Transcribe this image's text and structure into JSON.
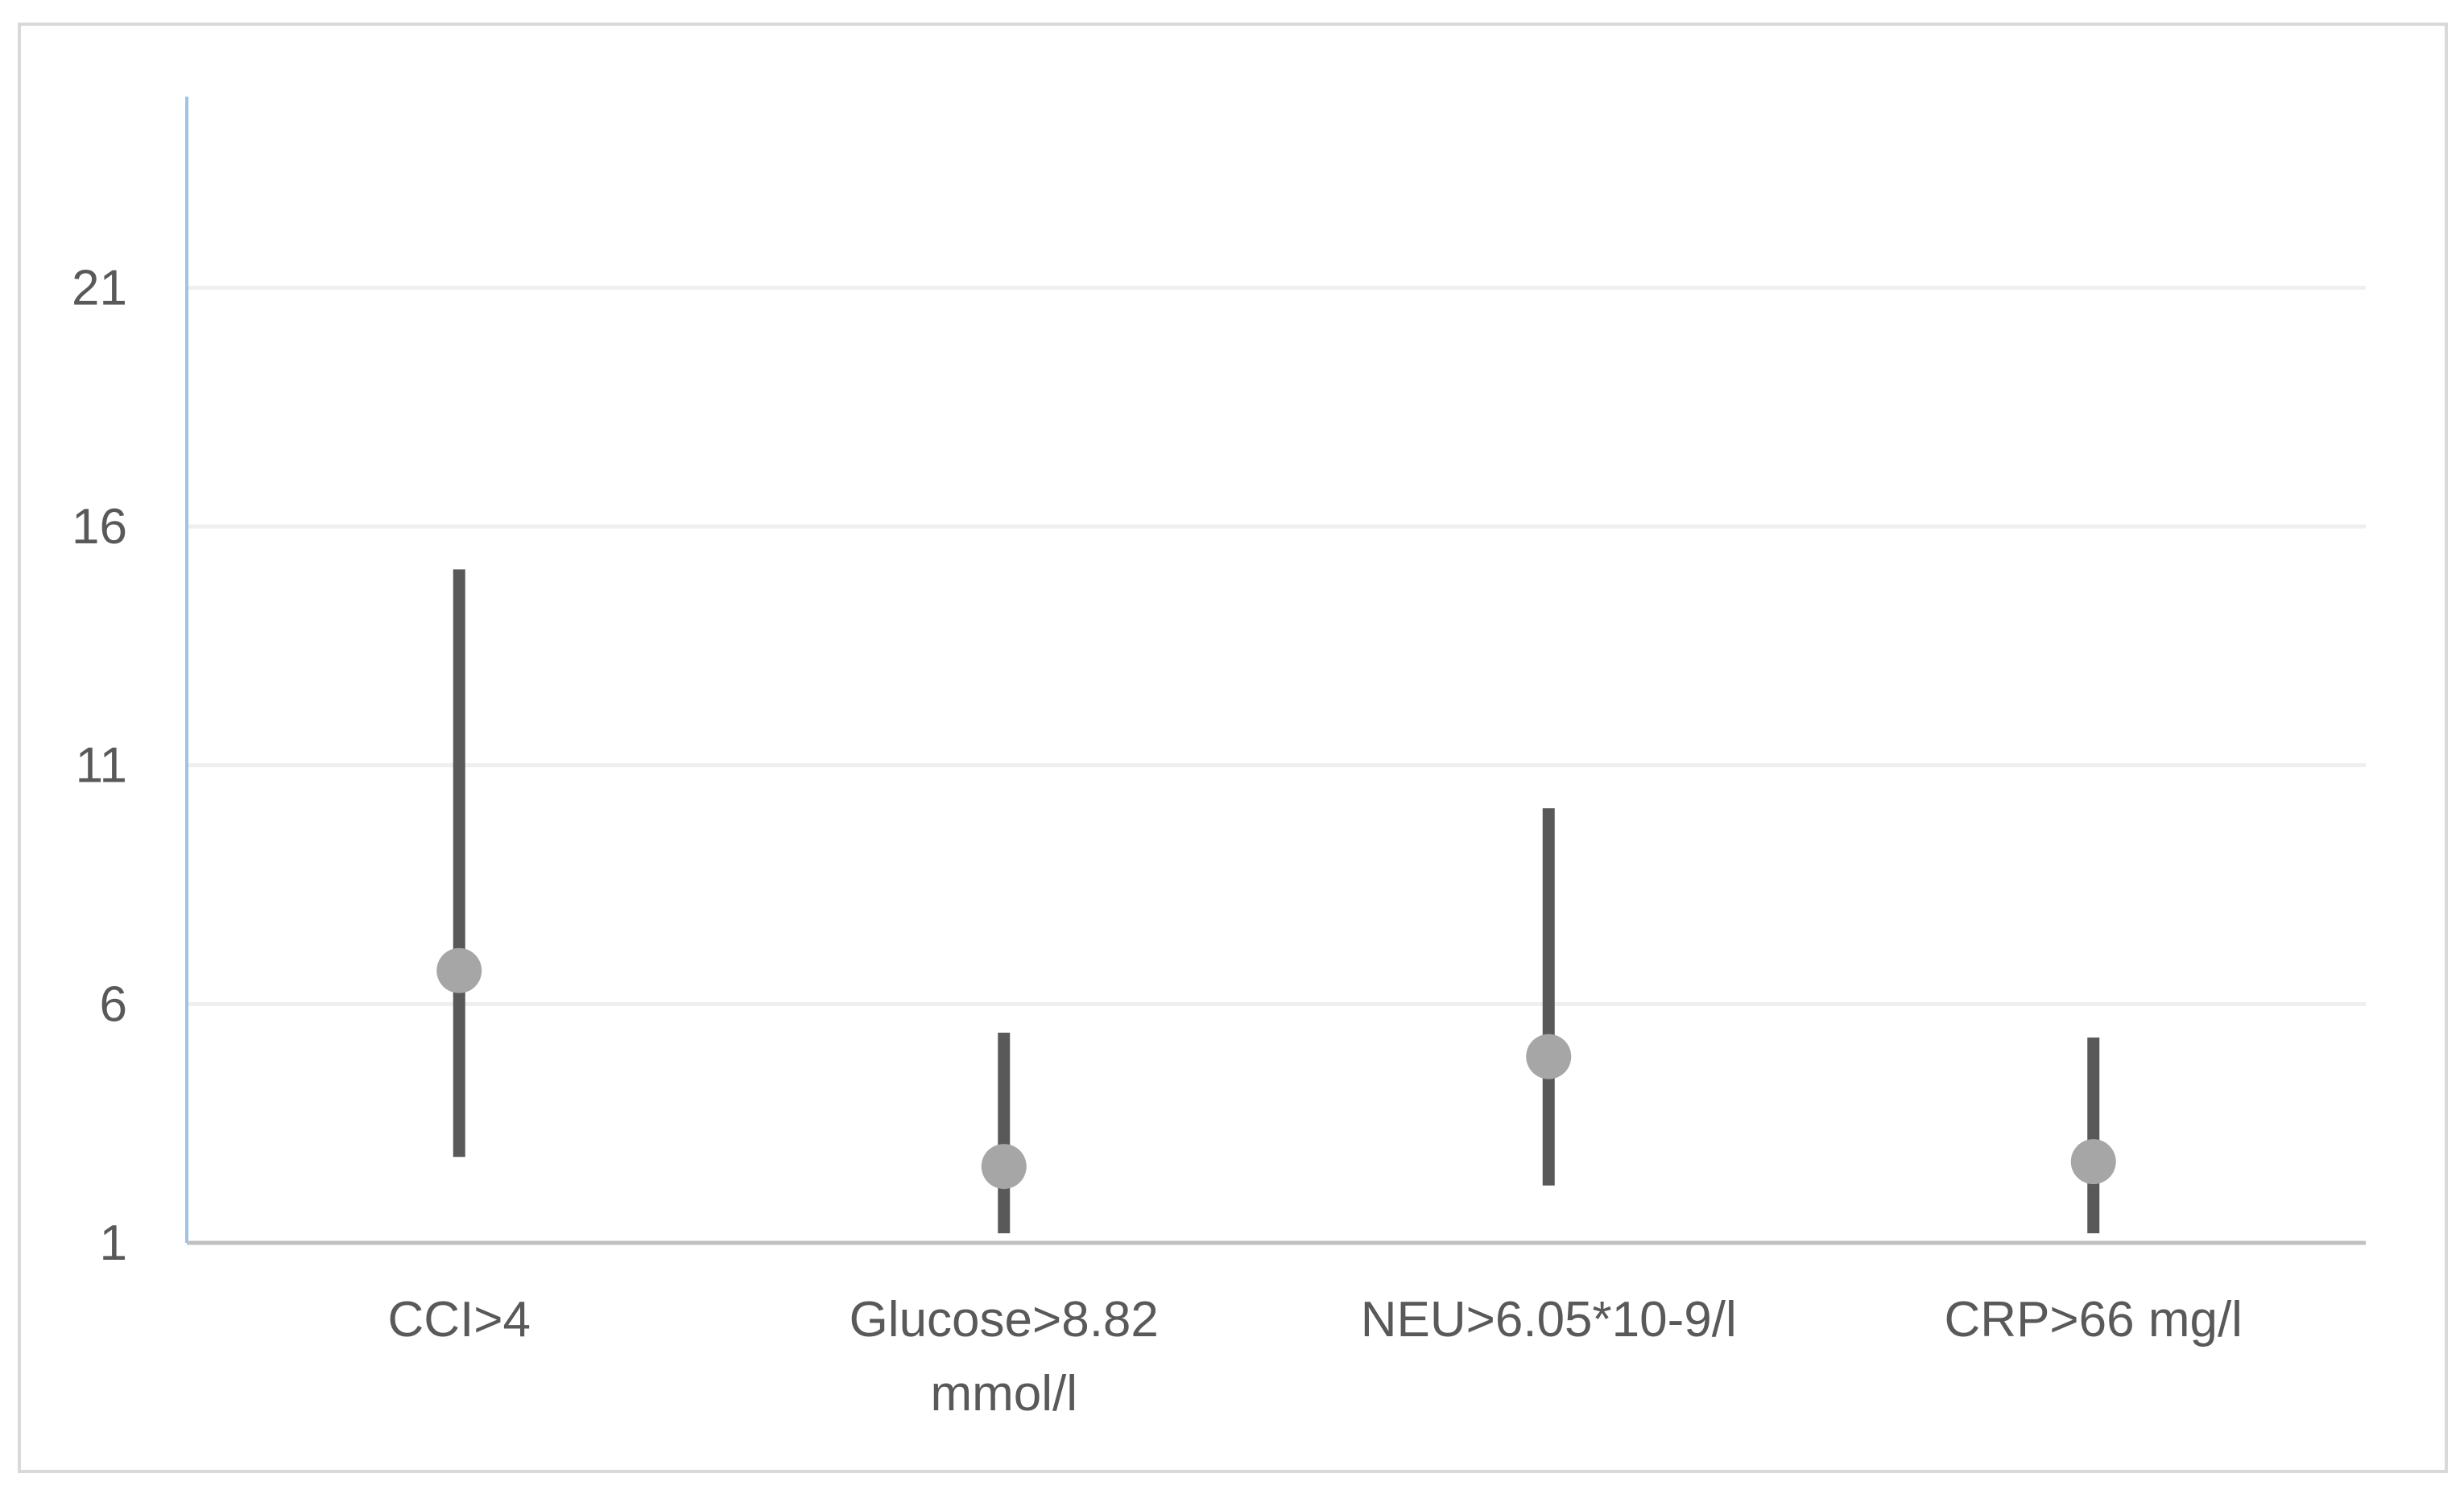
{
  "chart_data": {
    "type": "scatter",
    "subtype": "point-with-interval",
    "title": "",
    "xlabel": "",
    "ylabel": "",
    "categories": [
      "CCI>4",
      "Glucose>8.82 mmol/l",
      "NEU>6.05*10-9/l",
      "CRP>66 mg/l"
    ],
    "category_lines": [
      [
        "CCI>4"
      ],
      [
        "Glucose>8.82",
        "mmol/l"
      ],
      [
        "NEU>6.05*10-9/l"
      ],
      [
        "CRP>66 mg/l"
      ]
    ],
    "series": [
      {
        "points": [
          6.7,
          2.6,
          4.9,
          2.7
        ],
        "lower": [
          2.8,
          1.2,
          2.2,
          1.2
        ],
        "upper": [
          15.1,
          5.4,
          10.1,
          5.3
        ]
      }
    ],
    "yticks": [
      1,
      6,
      11,
      16,
      21
    ],
    "ylim": [
      1,
      25
    ],
    "grid": true,
    "legend": "none",
    "colors": {
      "interval": "#595959",
      "point": "#a6a6a6",
      "gridline": "#efefef",
      "x_axis": "#bfbfbf",
      "y_axis": "#9dc3e6"
    }
  }
}
